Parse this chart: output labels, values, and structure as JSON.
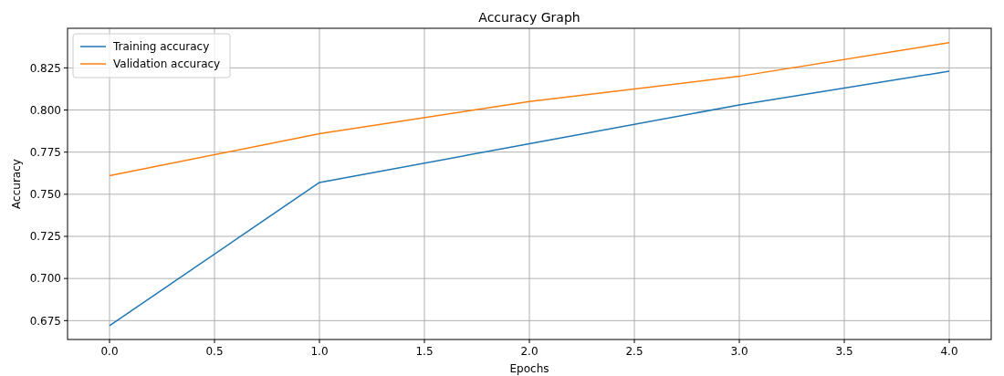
{
  "chart_data": {
    "type": "line",
    "title": "Accuracy Graph",
    "xlabel": "Epochs",
    "ylabel": "Accuracy",
    "x": [
      0,
      1,
      2,
      3,
      4
    ],
    "series": [
      {
        "name": "Training accuracy",
        "color": "#1f77b4",
        "values": [
          0.672,
          0.757,
          0.78,
          0.803,
          0.823
        ]
      },
      {
        "name": "Validation accuracy",
        "color": "#ff7f0e",
        "values": [
          0.761,
          0.786,
          0.805,
          0.82,
          0.84
        ]
      }
    ],
    "xlim": [
      -0.2,
      4.2
    ],
    "xticks": [
      {
        "value": 0,
        "label": "0.0"
      },
      {
        "value": 0.5,
        "label": "0.5"
      },
      {
        "value": 1,
        "label": "1.0"
      },
      {
        "value": 1.5,
        "label": "1.5"
      },
      {
        "value": 2,
        "label": "2.0"
      },
      {
        "value": 2.5,
        "label": "2.5"
      },
      {
        "value": 3,
        "label": "3.0"
      },
      {
        "value": 3.5,
        "label": "3.5"
      },
      {
        "value": 4,
        "label": "4.0"
      }
    ],
    "ylim": [
      0.6638,
      0.8485
    ],
    "yticks": [
      {
        "value": 0.675,
        "label": "0.675"
      },
      {
        "value": 0.7,
        "label": "0.700"
      },
      {
        "value": 0.725,
        "label": "0.725"
      },
      {
        "value": 0.75,
        "label": "0.750"
      },
      {
        "value": 0.775,
        "label": "0.775"
      },
      {
        "value": 0.8,
        "label": "0.800"
      },
      {
        "value": 0.825,
        "label": "0.825"
      }
    ],
    "grid": true,
    "legend": "top left"
  }
}
